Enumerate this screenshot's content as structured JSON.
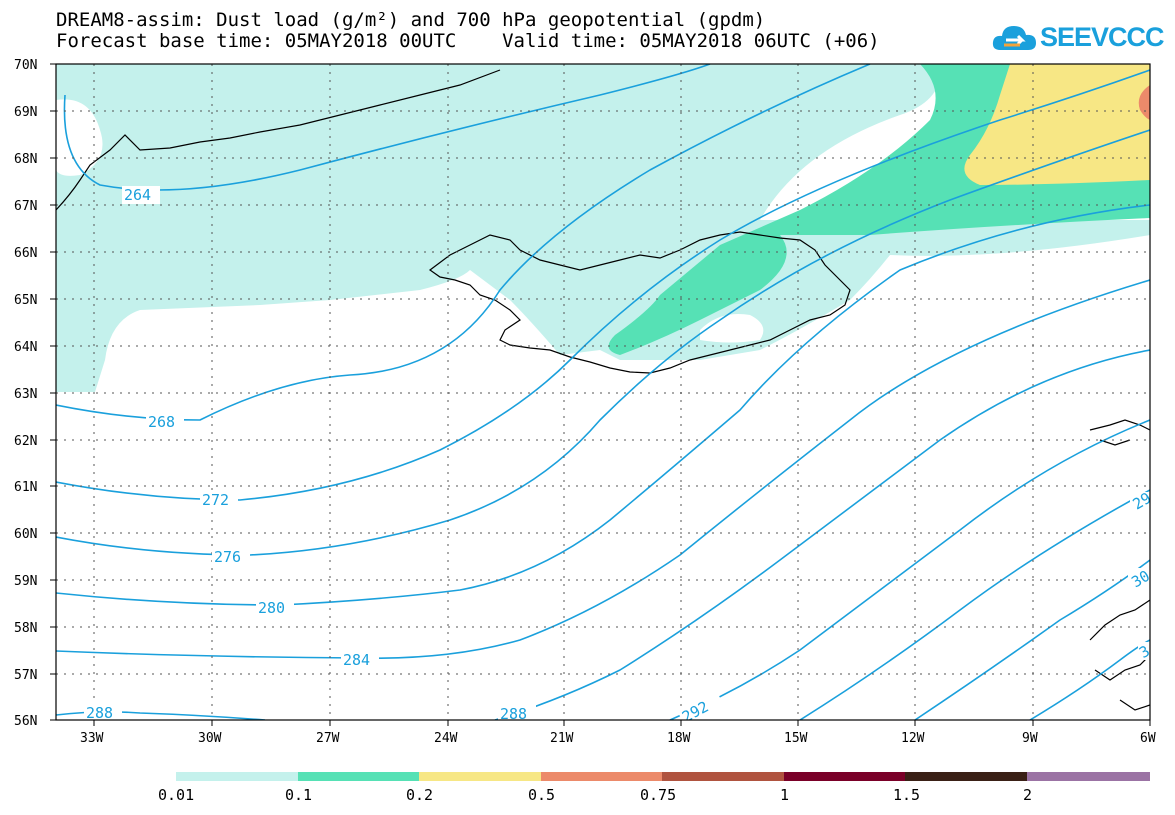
{
  "title": {
    "line1": "DREAM8-assim: Dust load (g/m²) and 700 hPa geopotential (gpdm)",
    "line2": "Forecast base time: 05MAY2018 00UTC    Valid time: 05MAY2018 06UTC (+06)"
  },
  "logo": {
    "text": "SEEVCCC",
    "color": "#1aa0dc"
  },
  "map": {
    "lat_labels": [
      "70N",
      "69N",
      "68N",
      "67N",
      "66N",
      "65N",
      "64N",
      "63N",
      "62N",
      "61N",
      "60N",
      "59N",
      "58N",
      "57N",
      "56N"
    ],
    "lon_labels": [
      "33W",
      "30W",
      "27W",
      "24W",
      "21W",
      "18W",
      "15W",
      "12W",
      "9W",
      "6W"
    ],
    "contour_labels": [
      "264",
      "268",
      "272",
      "276",
      "280",
      "284",
      "288",
      "288",
      "292",
      "29",
      "30",
      "3"
    ],
    "contour_color": "#1aa0dc"
  },
  "colorbar": {
    "labels": [
      "0.01",
      "0.1",
      "0.2",
      "0.5",
      "0.75",
      "1",
      "1.5",
      "2"
    ],
    "colors": [
      "#c4f1ec",
      "#56e1b5",
      "#f7e785",
      "#ec8a6a",
      "#b0533f",
      "#7a0028",
      "#3a2016",
      "#9b73a4"
    ]
  }
}
